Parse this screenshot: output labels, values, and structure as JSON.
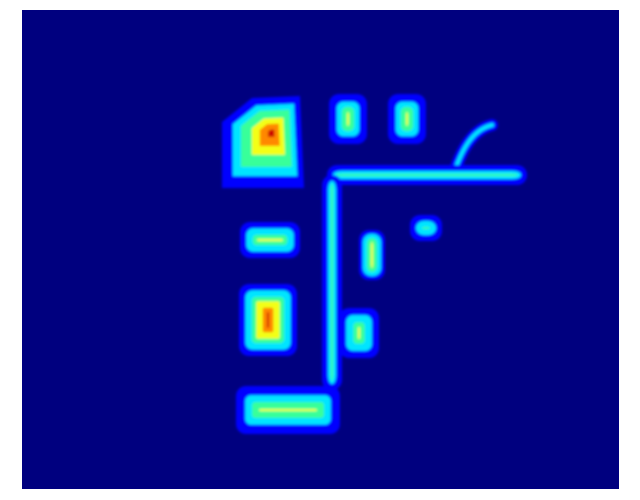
{
  "image": {
    "kind": "distance-field heatmap of a floor-plan layout",
    "colormap": "jet",
    "colors": {
      "background": "#00007f",
      "low": "#0000ff",
      "mid_low": "#00e5ff",
      "mid": "#39ff9a",
      "mid_high": "#f3ff14",
      "high": "#ff8800",
      "peak": "#cc0000",
      "page": "#ffffff"
    },
    "regions": [
      {
        "name": "top-left-room",
        "peak": "high"
      },
      {
        "name": "top-small-room-a",
        "peak": "mid-high"
      },
      {
        "name": "top-small-room-b",
        "peak": "mid-high"
      },
      {
        "name": "horizontal-corridor",
        "peak": "mid"
      },
      {
        "name": "curved-branch",
        "peak": "low"
      },
      {
        "name": "left-middle-room",
        "peak": "mid-high"
      },
      {
        "name": "center-narrow-room",
        "peak": "mid-high"
      },
      {
        "name": "small-side-room",
        "peak": "mid"
      },
      {
        "name": "left-lower-room",
        "peak": "high"
      },
      {
        "name": "center-lower-room",
        "peak": "mid-high"
      },
      {
        "name": "bottom-wide-room",
        "peak": "mid-high"
      },
      {
        "name": "vertical-corridor",
        "peak": "mid"
      }
    ]
  }
}
